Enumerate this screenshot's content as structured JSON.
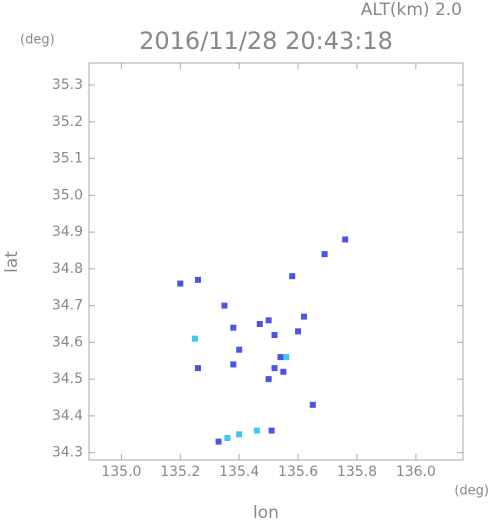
{
  "chart_data": {
    "type": "scatter",
    "title": "2016/11/28 20:43:18",
    "subtitle": "ALT(km) 2.0",
    "y_unit": "(deg)",
    "x_unit": "(deg)",
    "xlabel": "lon",
    "ylabel": "lat",
    "xlim": [
      134.89,
      136.16
    ],
    "ylim": [
      34.28,
      35.36
    ],
    "xticks": [
      {
        "value": 135,
        "label": "135.0"
      },
      135.2,
      135.4,
      135.6,
      135.8,
      {
        "value": 136,
        "label": "136.0"
      }
    ],
    "yticks": [
      34.3,
      34.4,
      34.5,
      34.6,
      34.7,
      34.8,
      34.9,
      {
        "value": 35,
        "label": "35.0"
      },
      35.1,
      35.2,
      35.3
    ],
    "x": [
      135.76,
      135.2,
      135.69,
      135.58,
      135.26,
      135.35,
      135.47,
      135.5,
      135.62,
      135.52,
      135.25,
      135.38,
      135.54,
      135.56,
      135.4,
      135.52,
      135.55,
      135.5,
      135.26,
      135.38,
      135.65,
      135.6,
      135.4,
      135.46,
      135.51,
      135.33,
      135.36
    ],
    "y": [
      34.88,
      34.76,
      34.84,
      34.78,
      34.77,
      34.7,
      34.65,
      34.66,
      34.67,
      34.62,
      34.61,
      34.64,
      34.56,
      34.56,
      34.58,
      34.53,
      34.52,
      34.5,
      34.53,
      34.54,
      34.43,
      34.63,
      34.35,
      34.36,
      34.36,
      34.33,
      34.34
    ],
    "colors": [
      "#4a55e6",
      "#4a55e6",
      "#4a55e6",
      "#4a55e6",
      "#4a55e6",
      "#4a55e6",
      "#4a55e6",
      "#4a55e6",
      "#4a55e6",
      "#4a55e6",
      "#3cc8f0",
      "#4a55e6",
      "#4a55e6",
      "#3cc8f0",
      "#4a55e6",
      "#4a55e6",
      "#4a55e6",
      "#4a55e6",
      "#4a55e6",
      "#4a55e6",
      "#4a55e6",
      "#4a55e6",
      "#3cc8f0",
      "#3cc8f0",
      "#4a55e6",
      "#4a55e6",
      "#3cc8f0"
    ]
  }
}
